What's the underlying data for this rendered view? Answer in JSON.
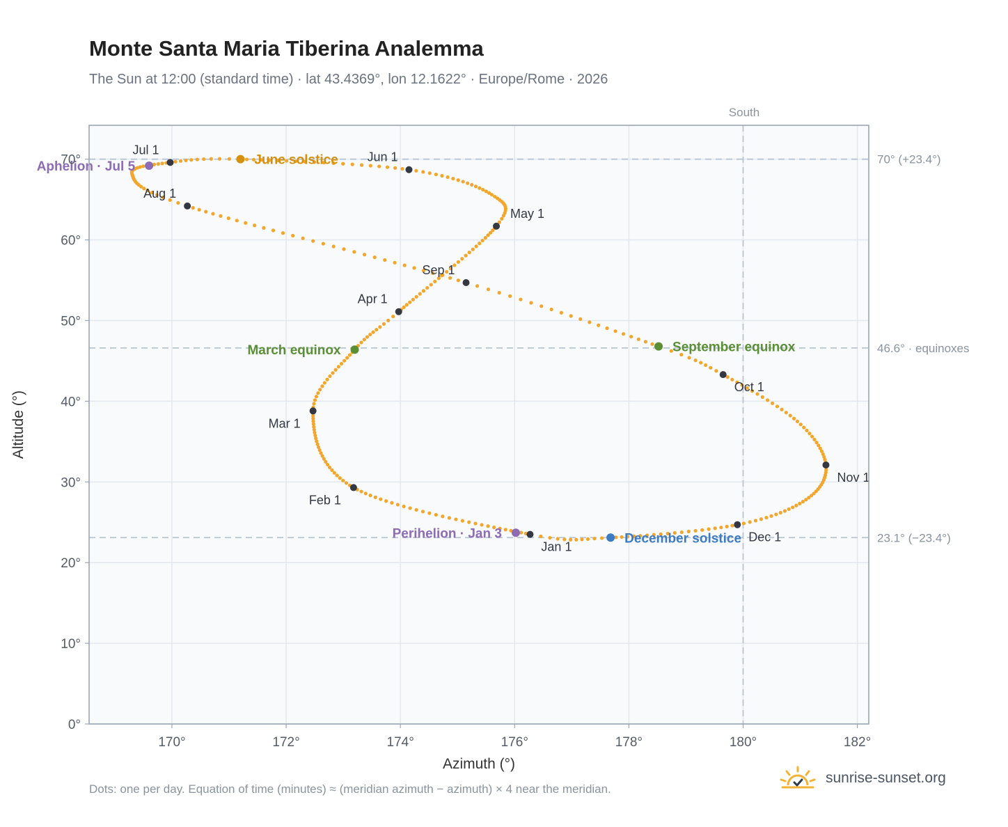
{
  "title": "Monte Santa Maria Tiberina Analemma",
  "subtitle": "The Sun at 12:00 (standard time) · lat 43.4369°, lon 12.1622° · Europe/Rome · 2026",
  "footnote": "Dots: one per day. Equation of time (minutes) ≈ (meridian azimuth − azimuth) × 4 near the meridian.",
  "brand": {
    "name": "sunrise-sunset.org",
    "icon": "sun-check-icon"
  },
  "colors": {
    "curve": "#f2a72c",
    "month_marker": "#333842",
    "aphelion_perihelion": "#8e6bb5",
    "june_solstice": "#d4900e",
    "december_solstice": "#3d7cc0",
    "equinox": "#5a8f36",
    "reference_line": "#b7c4d1",
    "grid": "#e3e8ee",
    "plot_bg": "#f8fafc"
  },
  "chart_data": {
    "type": "scatter",
    "xlabel": "Azimuth (°)",
    "ylabel": "Altitude (°)",
    "xlim": [
      168.55,
      182.2
    ],
    "ylim": [
      0,
      74.2
    ],
    "xticks": [
      "170°",
      "172°",
      "174°",
      "176°",
      "178°",
      "180°",
      "182°"
    ],
    "xtick_values": [
      170,
      172,
      174,
      176,
      178,
      180,
      182
    ],
    "yticks": [
      "0°",
      "10°",
      "20°",
      "30°",
      "40°",
      "50°",
      "60°",
      "70°"
    ],
    "ytick_values": [
      0,
      10,
      20,
      30,
      40,
      50,
      60,
      70
    ],
    "grid": true,
    "meridian": {
      "azimuth": 180,
      "label": "South"
    },
    "reference_lines": [
      {
        "altitude": 70.0,
        "label": "70° (+23.4°)"
      },
      {
        "altitude": 46.6,
        "label": "46.6° · equinoxes"
      },
      {
        "altitude": 23.1,
        "label": "23.1° (−23.4°)"
      }
    ],
    "analemma_knots": [
      {
        "day": 1,
        "az": 176.27,
        "alt": 23.5
      },
      {
        "day": 32,
        "az": 173.18,
        "alt": 29.3
      },
      {
        "day": 60,
        "az": 172.47,
        "alt": 38.8
      },
      {
        "day": 79,
        "az": 173.2,
        "alt": 46.4
      },
      {
        "day": 91,
        "az": 173.97,
        "alt": 51.1
      },
      {
        "day": 121,
        "az": 175.68,
        "alt": 61.7
      },
      {
        "day": 135,
        "az": 175.6,
        "alt": 65.6
      },
      {
        "day": 152,
        "az": 174.15,
        "alt": 68.7
      },
      {
        "day": 172,
        "az": 171.2,
        "alt": 70.0
      },
      {
        "day": 182,
        "az": 169.97,
        "alt": 69.6
      },
      {
        "day": 196,
        "az": 169.3,
        "alt": 68.2
      },
      {
        "day": 213,
        "az": 170.27,
        "alt": 64.2
      },
      {
        "day": 244,
        "az": 175.15,
        "alt": 54.7
      },
      {
        "day": 265,
        "az": 178.52,
        "alt": 46.8
      },
      {
        "day": 274,
        "az": 179.65,
        "alt": 43.3
      },
      {
        "day": 290,
        "az": 180.95,
        "alt": 37.5
      },
      {
        "day": 305,
        "az": 181.45,
        "alt": 32.1
      },
      {
        "day": 320,
        "az": 181.1,
        "alt": 27.8
      },
      {
        "day": 335,
        "az": 179.9,
        "alt": 24.7
      },
      {
        "day": 355,
        "az": 177.68,
        "alt": 23.1
      },
      {
        "day": 366,
        "az": 176.27,
        "alt": 23.5
      }
    ],
    "month_markers": [
      {
        "label": "Jan 1",
        "az": 176.27,
        "alt": 23.5,
        "anchor": "below-right"
      },
      {
        "label": "Feb 1",
        "az": 173.18,
        "alt": 29.3,
        "anchor": "below-left"
      },
      {
        "label": "Mar 1",
        "az": 172.47,
        "alt": 38.8,
        "anchor": "below-left"
      },
      {
        "label": "Apr 1",
        "az": 173.97,
        "alt": 51.1,
        "anchor": "above-left"
      },
      {
        "label": "May 1",
        "az": 175.68,
        "alt": 61.7,
        "anchor": "above-right"
      },
      {
        "label": "Jun 1",
        "az": 174.15,
        "alt": 68.7,
        "anchor": "above-left"
      },
      {
        "label": "Jul 1",
        "az": 169.97,
        "alt": 69.6,
        "anchor": "above-left"
      },
      {
        "label": "Aug 1",
        "az": 170.27,
        "alt": 64.2,
        "anchor": "above-left"
      },
      {
        "label": "Sep 1",
        "az": 175.15,
        "alt": 54.7,
        "anchor": "above-left"
      },
      {
        "label": "Oct 1",
        "az": 179.65,
        "alt": 43.3,
        "anchor": "below-right"
      },
      {
        "label": "Nov 1",
        "az": 181.45,
        "alt": 32.1,
        "anchor": "below-right"
      },
      {
        "label": "Dec 1",
        "az": 179.9,
        "alt": 24.7,
        "anchor": "below-right"
      }
    ],
    "events": [
      {
        "label": "Aphelion · Jul 5",
        "az": 169.6,
        "alt": 69.2,
        "color_key": "aphelion_perihelion",
        "anchor": "left"
      },
      {
        "label": "June solstice",
        "az": 171.2,
        "alt": 70.0,
        "color_key": "june_solstice",
        "anchor": "right"
      },
      {
        "label": "March equinox",
        "az": 173.2,
        "alt": 46.4,
        "color_key": "equinox",
        "anchor": "left"
      },
      {
        "label": "September equinox",
        "az": 178.52,
        "alt": 46.8,
        "color_key": "equinox",
        "anchor": "right"
      },
      {
        "label": "Perihelion · Jan 3",
        "az": 176.02,
        "alt": 23.7,
        "color_key": "aphelion_perihelion",
        "anchor": "left"
      },
      {
        "label": "December solstice",
        "az": 177.68,
        "alt": 23.1,
        "color_key": "december_solstice",
        "anchor": "right"
      }
    ]
  }
}
